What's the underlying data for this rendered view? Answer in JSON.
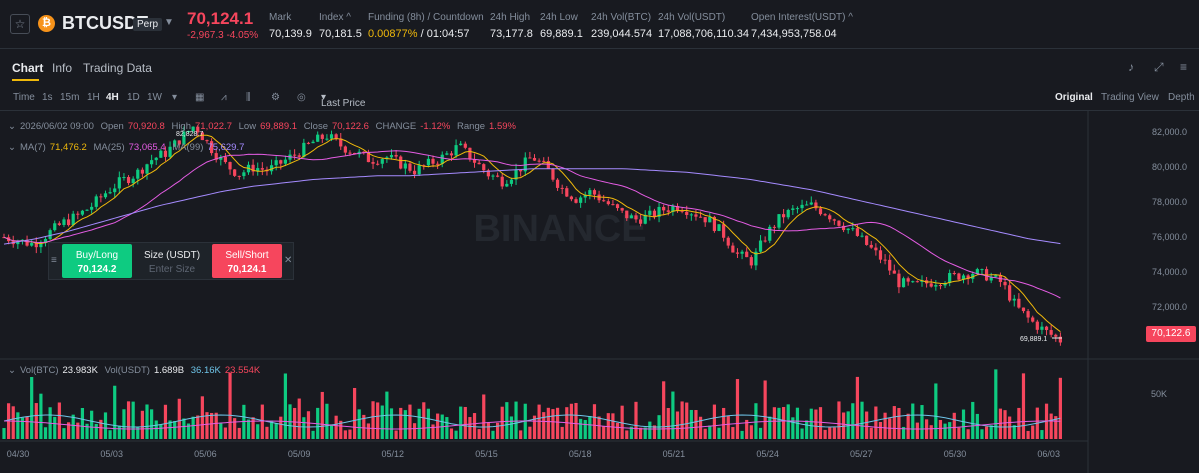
{
  "header": {
    "symbol": "BTCUSDT",
    "contract_type": "Perp",
    "coin_icon": "bitcoin-icon",
    "last_price": "70,124.1",
    "change": "-2,967.3 -4.05%",
    "stats": [
      {
        "label": "Mark",
        "value": "70,139.9"
      },
      {
        "label": "Index ^",
        "value": "70,181.5"
      },
      {
        "label": "Funding (8h) / Countdown",
        "value": "0.00877%",
        "value2": "/ 01:04:57"
      },
      {
        "label": "24h High",
        "value": "73,177.8"
      },
      {
        "label": "24h Low",
        "value": "69,889.1"
      },
      {
        "label": "24h Vol(BTC)",
        "value": "239,044.574"
      },
      {
        "label": "24h Vol(USDT)",
        "value": "17,088,706,110.34"
      },
      {
        "label": "Open Interest(USDT) ^",
        "value": "7,434,953,758.04"
      }
    ]
  },
  "tabs": [
    "Chart",
    "Info",
    "Trading Data"
  ],
  "toolbar": {
    "time_label": "Time",
    "intervals": [
      "1s",
      "15m",
      "1H",
      "4H",
      "1D",
      "1W"
    ],
    "selected_interval": "4H",
    "price_type": "Last Price",
    "views": [
      "Original",
      "Trading View",
      "Depth"
    ],
    "selected_view": "Original"
  },
  "ohlc": {
    "date": "2026/06/02 09:00",
    "open_label": "Open",
    "open": "70,920.8",
    "high_label": "High",
    "high": "71,022.7",
    "low_label": "Low",
    "low": "69,889.1",
    "close_label": "Close",
    "close": "70,122.6",
    "change_label": "CHANGE",
    "change": "-1.12%",
    "range_label": "Range",
    "range": "1.59%"
  },
  "ma": {
    "ma7_label": "MA(7)",
    "ma7": "71,476.2",
    "ma25_label": "MA(25)",
    "ma25": "73,065.4",
    "ma99_label": "MA(99)",
    "ma99": "75,629.7"
  },
  "trade_panel": {
    "buy_label": "Buy/Long",
    "buy_price": "70,124.2",
    "size_label": "Size (USDT)",
    "size_placeholder": "Enter Size",
    "sell_label": "Sell/Short",
    "sell_price": "70,124.1"
  },
  "high_marker": "82,828.7",
  "low_marker": "69,889.1",
  "last_price_tag": "70,122.6",
  "watermark": "BINANCE",
  "volume": {
    "label": "Vol(BTC)",
    "btc": "23.983K",
    "usdt_label": "Vol(USDT)",
    "usdt": "1.689B",
    "ma1": "36.16K",
    "ma2": "23.554K",
    "axis_tick": "50K"
  },
  "colors": {
    "up": "#0ecb81",
    "down": "#f6465d",
    "ma7": "#f0b90b",
    "ma25": "#e45ce3",
    "ma99": "#a58bff",
    "accent": "#f0b90b"
  },
  "chart_data": {
    "type": "candlestick",
    "y_ticks": [
      82000,
      80000,
      78000,
      76000,
      74000,
      72000
    ],
    "y_tick_labels": [
      "82,000.0",
      "80,000.0",
      "78,000.0",
      "76,000.0",
      "74,000.0",
      "72,000.0"
    ],
    "ylim": [
      69500,
      83200
    ],
    "x_ticks": [
      "04/30",
      "05/03",
      "05/06",
      "05/09",
      "05/12",
      "05/15",
      "05/18",
      "05/21",
      "05/24",
      "05/27",
      "05/30",
      "06/03"
    ],
    "close_path": [
      76000,
      75800,
      75600,
      76200,
      76800,
      77200,
      77800,
      78600,
      79200,
      79600,
      80400,
      80800,
      81600,
      82400,
      81200,
      80200,
      79600,
      80000,
      79800,
      80300,
      80800,
      81400,
      81800,
      81200,
      80800,
      80400,
      80600,
      80200,
      79800,
      80200,
      80600,
      81200,
      80400,
      79600,
      79200,
      79800,
      80600,
      79900,
      78800,
      78200,
      78600,
      78000,
      77400,
      77000,
      77200,
      77600,
      77800,
      77400,
      77000,
      76200,
      75000,
      74600,
      76200,
      77200,
      77600,
      77800,
      77400,
      76800,
      76200,
      75400,
      74600,
      73400,
      73200,
      73400,
      73600,
      73800,
      74000,
      73800,
      73400,
      72000,
      71200,
      70600,
      70122
    ],
    "ma99_path": [
      75600,
      75900,
      76300,
      76800,
      77300,
      77800,
      78200,
      78600,
      78900,
      79100,
      79300,
      79400,
      79500,
      79500,
      79600,
      79700,
      79800,
      79900,
      79900,
      79900,
      79900,
      79800,
      79700,
      79500,
      79300,
      79000,
      78700,
      78300,
      77900,
      77500,
      77100,
      76700,
      76300,
      75900,
      75629
    ]
  }
}
